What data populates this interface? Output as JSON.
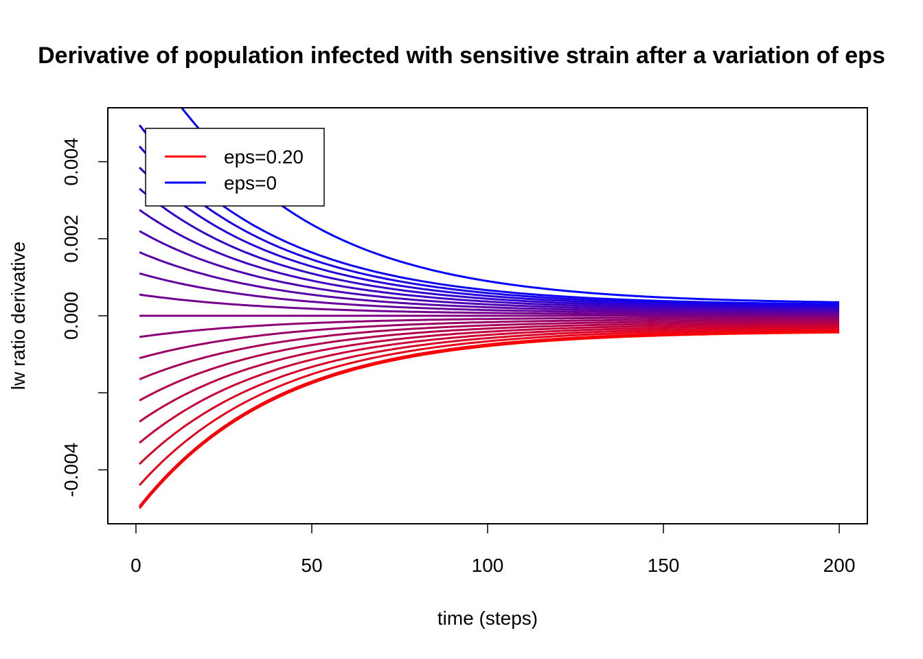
{
  "chart_data": {
    "type": "line",
    "title": "Derivative of population infected with sensitive strain after a variation of eps",
    "xlabel": "time (steps)",
    "ylabel": "lw ratio derivative",
    "xlim": [
      -8,
      208
    ],
    "ylim": [
      -0.0054,
      0.0054
    ],
    "x_ticks": [
      0,
      50,
      100,
      150,
      200
    ],
    "x_tick_labels": [
      "0",
      "50",
      "100",
      "150",
      "200"
    ],
    "y_ticks": [
      -0.004,
      -0.002,
      0.0,
      0.002,
      0.004
    ],
    "y_tick_labels": [
      "-0.004",
      "",
      "0.000",
      "0.002",
      "0.004"
    ],
    "grid": false,
    "legend": {
      "position": "top-left",
      "entries": [
        {
          "label": "eps=0.20",
          "color": "#ff0000"
        },
        {
          "label": "eps=0",
          "color": "#0000ff"
        }
      ]
    },
    "color_low": "#ff0000",
    "color_high": "#0000ff",
    "series_count": 21,
    "x_start": 1,
    "x_end": 200,
    "initial_values": [
      -0.005,
      -0.00495,
      -0.0044,
      -0.00385,
      -0.0033,
      -0.00275,
      -0.0022,
      -0.00165,
      -0.0011,
      -0.00055,
      0.0,
      0.00055,
      0.0011,
      0.00165,
      0.0022,
      0.00275,
      0.0033,
      0.00385,
      0.0044,
      0.00495,
      0.0055
    ],
    "peak_value_top": 0.0058,
    "end_values": [
      -0.0004,
      -0.00036,
      -0.00032,
      -0.00028,
      -0.00024,
      -0.0002,
      -0.00016,
      -0.00012,
      -8e-05,
      -4e-05,
      0.0,
      3e-05,
      6e-05,
      9e-05,
      0.00012,
      0.00015,
      0.00018,
      0.00021,
      0.00024,
      0.00027,
      0.0003
    ],
    "decay_rate": 0.025
  }
}
